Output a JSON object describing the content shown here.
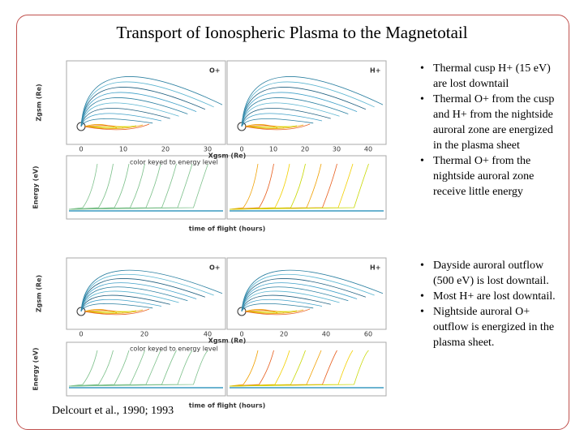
{
  "title": "Transport of Ionospheric Plasma to the Magnetotail",
  "figures": [
    {
      "panels": [
        "O+",
        "H+"
      ],
      "y_label": "Zgsm (Re)",
      "x_label": "Xgsm (Re)",
      "x_ticks_left": [
        "0",
        "10",
        "20",
        "30"
      ],
      "x_ticks_right": [
        "0",
        "10",
        "20",
        "30",
        "40"
      ],
      "energy_label": "Energy (eV)",
      "note": "color keyed to energy level",
      "time_label": "time of flight (hours)"
    },
    {
      "panels": [
        "O+",
        "H+"
      ],
      "y_label": "Zgsm (Re)",
      "x_label": "Xgsm (Re)",
      "x_ticks_left": [
        "0",
        "20",
        "40"
      ],
      "x_ticks_right": [
        "0",
        "20",
        "40",
        "60"
      ],
      "energy_label": "Energy (eV)",
      "note": "color keyed to energy level",
      "time_label": "time of flight (hours)"
    }
  ],
  "bullet_groups": [
    [
      "Thermal cusp H+ (15 eV) are lost downtail",
      "Thermal O+ from the cusp and H+ from the nightside auroral zone are energized in the plasma sheet",
      "Thermal O+ from the nightside auroral zone receive little energy"
    ],
    [
      "Dayside auroral outflow (500 eV) is lost downtail.",
      "Most H+ are lost downtail.",
      "Nightside auroral O+ outflow is energized in the plasma sheet."
    ]
  ],
  "citation": "Delcourt et al., 1990; 1993"
}
